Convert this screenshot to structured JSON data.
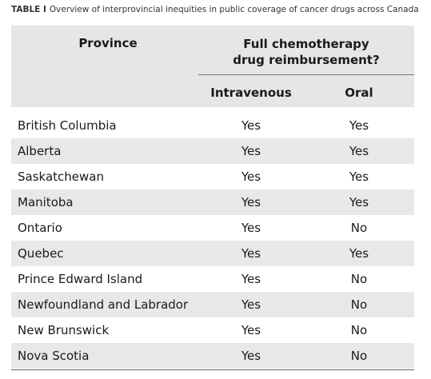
{
  "table": {
    "caption": {
      "label": "TABLE I",
      "text": "Overview of interprovincial inequities in public coverage of cancer drugs across Canada"
    },
    "headers": {
      "province": "Province",
      "group": "Full chemotherapy drug reimbursement?",
      "columns": [
        "Intravenous",
        "Oral"
      ]
    },
    "rows": [
      [
        "British Columbia",
        "Yes",
        "Yes"
      ],
      [
        "Alberta",
        "Yes",
        "Yes"
      ],
      [
        "Saskatchewan",
        "Yes",
        "Yes"
      ],
      [
        "Manitoba",
        "Yes",
        "Yes"
      ],
      [
        "Ontario",
        "Yes",
        "No"
      ],
      [
        "Quebec",
        "Yes",
        "Yes"
      ],
      [
        "Prince Edward Island",
        "Yes",
        "No"
      ],
      [
        "Newfoundland and Labrador",
        "Yes",
        "No"
      ],
      [
        "New Brunswick",
        "Yes",
        "No"
      ],
      [
        "Nova Scotia",
        "Yes",
        "No"
      ]
    ]
  }
}
